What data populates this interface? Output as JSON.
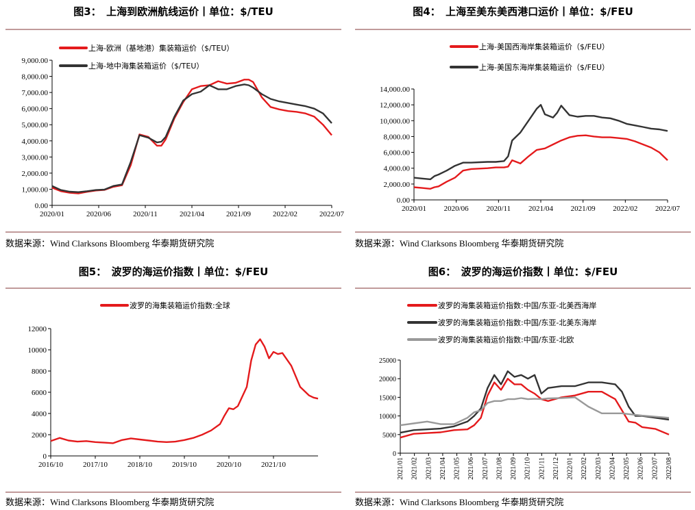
{
  "panels": [
    {
      "title": "图3：　上海到欧洲航线运价丨单位：$/TEU",
      "source": "数据来源：Wind Clarksons Bloomberg 华泰期货研究院"
    },
    {
      "title": "图4：　上海至美东美西港口运价丨单位：$/FEU",
      "source": "数据来源：Wind Clarksons Bloomberg 华泰期货研究院"
    },
    {
      "title": "图5：　波罗的海运价指数丨单位：$/FEU",
      "source": "数据来源：Wind Clarksons Bloomberg 华泰期货研究院"
    },
    {
      "title": "图6：　波罗的海运价指数丨单位：$/FEU",
      "source": "数据来源：Wind Clarksons Bloomberg 华泰期货研究院"
    }
  ],
  "chart_data": [
    {
      "type": "line",
      "x_tick_labels": [
        "2020/01",
        "2020/06",
        "2020/11",
        "2021/04",
        "2021/09",
        "2022/02",
        "2022/07"
      ],
      "ylim": [
        0,
        9000
      ],
      "y_ticks": [
        "0.00",
        "1,000.00",
        "2,000.00",
        "3,000.00",
        "4,000.00",
        "5,000.00",
        "6,000.00",
        "7,000.00",
        "8,000.00",
        "9,000.00"
      ],
      "legend_placement": "top-left",
      "series": [
        {
          "name": "上海-欧洲（基地港）集装箱运价（$/TEU）",
          "color": "#e41a1c",
          "x": [
            0,
            2,
            4,
            6,
            8,
            10,
            12,
            14,
            16,
            18,
            20,
            22,
            24,
            25,
            26,
            28,
            30,
            32,
            34,
            36,
            38,
            40,
            42,
            44,
            45,
            46,
            48,
            50,
            52,
            54,
            56,
            58,
            60,
            62,
            64
          ],
          "values": [
            1100,
            880,
            780,
            740,
            840,
            920,
            960,
            1150,
            1250,
            2500,
            4400,
            4250,
            3700,
            3700,
            4100,
            5400,
            6400,
            7200,
            7400,
            7450,
            7700,
            7550,
            7600,
            7800,
            7800,
            7650,
            6700,
            6100,
            5950,
            5850,
            5800,
            5700,
            5500,
            5000,
            4350
          ]
        },
        {
          "name": "上海-地中海集装箱运价（$/TEU）",
          "color": "#333333",
          "x": [
            0,
            2,
            4,
            6,
            8,
            10,
            12,
            14,
            16,
            18,
            20,
            22,
            24,
            25,
            26,
            28,
            30,
            32,
            34,
            36,
            38,
            40,
            42,
            44,
            45,
            46,
            48,
            50,
            52,
            54,
            56,
            58,
            60,
            62,
            64
          ],
          "values": [
            1200,
            950,
            850,
            820,
            880,
            950,
            980,
            1200,
            1300,
            2700,
            4350,
            4200,
            3900,
            3950,
            4250,
            5500,
            6500,
            6900,
            7050,
            7450,
            7200,
            7200,
            7400,
            7500,
            7450,
            7300,
            6900,
            6600,
            6450,
            6350,
            6250,
            6150,
            6000,
            5700,
            5100
          ]
        }
      ]
    },
    {
      "type": "line",
      "x_tick_labels": [
        "2020/01",
        "2020/06",
        "2020/11",
        "2021/04",
        "2021/09",
        "2022/02",
        "2022/07"
      ],
      "ylim": [
        0,
        14000
      ],
      "y_ticks": [
        "0.00",
        "2,000.00",
        "4,000.00",
        "6,000.00",
        "8,000.00",
        "10,000.00",
        "12,000.00",
        "14,000.00"
      ],
      "legend_placement": "top-center",
      "series": [
        {
          "name": "上海-美国西海岸集装箱运价（$/FEU）",
          "color": "#e41a1c",
          "x": [
            0,
            2,
            4,
            5,
            6,
            8,
            10,
            12,
            14,
            16,
            18,
            20,
            22,
            23,
            24,
            26,
            28,
            30,
            32,
            34,
            36,
            38,
            40,
            42,
            44,
            46,
            48,
            50,
            52,
            54,
            56,
            58,
            60,
            62
          ],
          "values": [
            1600,
            1500,
            1400,
            1600,
            1700,
            2300,
            2800,
            3700,
            3900,
            3950,
            4000,
            4100,
            4100,
            4200,
            5000,
            4600,
            5500,
            6300,
            6500,
            7000,
            7500,
            7900,
            8100,
            8150,
            8000,
            7900,
            7900,
            7800,
            7700,
            7400,
            7000,
            6600,
            6000,
            5000
          ]
        },
        {
          "name": "上海-美国东海岸集装箱运价（$/FEU）",
          "color": "#333333",
          "x": [
            0,
            2,
            4,
            5,
            6,
            8,
            10,
            12,
            14,
            16,
            18,
            20,
            22,
            23,
            24,
            26,
            28,
            30,
            31,
            32,
            34,
            35,
            36,
            38,
            40,
            42,
            44,
            46,
            48,
            50,
            52,
            54,
            56,
            58,
            60,
            62
          ],
          "values": [
            2800,
            2700,
            2600,
            3000,
            3200,
            3700,
            4300,
            4700,
            4700,
            4750,
            4800,
            4800,
            4900,
            5500,
            7500,
            8500,
            10000,
            11500,
            12000,
            10800,
            10400,
            11000,
            11900,
            10700,
            10500,
            10600,
            10600,
            10400,
            10300,
            10000,
            9600,
            9400,
            9200,
            9000,
            8900,
            8700
          ]
        }
      ]
    },
    {
      "type": "line",
      "x_tick_labels": [
        "2016/10",
        "2017/10",
        "2018/10",
        "2019/10",
        "2020/10",
        "2021/10"
      ],
      "ylim": [
        0,
        12000
      ],
      "y_ticks": [
        "0",
        "2000",
        "4000",
        "6000",
        "8000",
        "10000",
        "12000"
      ],
      "legend_placement": "top-center",
      "series": [
        {
          "name": "波罗的海集装箱运价指数:全球",
          "color": "#e41a1c",
          "x": [
            0,
            0.2,
            0.4,
            0.6,
            0.8,
            1,
            1.2,
            1.4,
            1.6,
            1.8,
            2,
            2.2,
            2.4,
            2.6,
            2.8,
            3,
            3.2,
            3.4,
            3.6,
            3.8,
            3.9,
            4,
            4.1,
            4.2,
            4.4,
            4.5,
            4.6,
            4.7,
            4.8,
            4.9,
            5,
            5.1,
            5.2,
            5.4,
            5.6,
            5.8,
            5.9,
            6
          ],
          "values": [
            1400,
            1700,
            1450,
            1350,
            1400,
            1300,
            1250,
            1200,
            1500,
            1650,
            1550,
            1450,
            1350,
            1300,
            1350,
            1500,
            1700,
            2000,
            2400,
            3000,
            3800,
            4500,
            4400,
            4700,
            6500,
            9000,
            10500,
            11000,
            10300,
            9200,
            9800,
            9600,
            9700,
            8500,
            6500,
            5700,
            5500,
            5400
          ]
        }
      ]
    },
    {
      "type": "line",
      "x_tick_labels": [
        "2021/01",
        "2021/02",
        "2021/03",
        "2021/04",
        "2021/05",
        "2021/06",
        "2021/07",
        "2021/08",
        "2021/09",
        "2021/10",
        "2021/11",
        "2021/12",
        "2022/01",
        "2022/02",
        "2022/03",
        "2022/04",
        "2022/05",
        "2022/06",
        "2022/07",
        "2022/08"
      ],
      "ylim": [
        0,
        25000
      ],
      "y_ticks": [
        "0",
        "5000",
        "10000",
        "15000",
        "20000",
        "25000"
      ],
      "legend_placement": "top-left",
      "series": [
        {
          "name": "波罗的海集装箱运价指数:中国/东亚-北美西海岸",
          "color": "#e41a1c",
          "x": [
            0,
            1,
            2,
            3,
            4,
            5,
            5.5,
            6,
            6.5,
            7,
            7.5,
            8,
            8.5,
            9,
            9.5,
            10,
            10.5,
            11,
            12,
            13,
            14,
            15,
            16,
            16.5,
            17,
            17.5,
            18,
            19,
            20
          ],
          "values": [
            4200,
            5200,
            5400,
            5600,
            6200,
            6400,
            7500,
            9500,
            15500,
            19000,
            17000,
            20000,
            18500,
            18500,
            17000,
            16000,
            14500,
            14000,
            15000,
            15500,
            16500,
            16500,
            14500,
            11500,
            8500,
            8200,
            7000,
            6500,
            5000
          ]
        },
        {
          "name": "波罗的海集装箱运价指数:中国/东亚-北美东海岸",
          "color": "#333333",
          "x": [
            0,
            1,
            2,
            3,
            4,
            5,
            5.5,
            6,
            6.5,
            7,
            7.5,
            8,
            8.5,
            9,
            9.5,
            10,
            10.5,
            11,
            12,
            13,
            14,
            15,
            16,
            16.5,
            17,
            17.5,
            18,
            19,
            20
          ],
          "values": [
            5500,
            6200,
            6400,
            6600,
            7200,
            8500,
            10000,
            12000,
            17500,
            21000,
            18500,
            22000,
            20500,
            21000,
            20000,
            21000,
            16000,
            17500,
            18000,
            18000,
            19000,
            19000,
            18500,
            16500,
            12500,
            10000,
            10000,
            9500,
            9000
          ]
        },
        {
          "name": "波罗的海集装箱运价指数:中国/东亚-北欧",
          "color": "#999999",
          "x": [
            0,
            1,
            2,
            3,
            4,
            5,
            5.5,
            6,
            6.5,
            7,
            7.5,
            8,
            8.5,
            9,
            9.5,
            10,
            10.5,
            11,
            12,
            13,
            14,
            15,
            16,
            16.5,
            17,
            17.5,
            18,
            19,
            20
          ],
          "values": [
            7500,
            8000,
            8500,
            7800,
            7800,
            9500,
            11000,
            11500,
            13500,
            14000,
            14000,
            14500,
            14500,
            14800,
            14500,
            14600,
            14500,
            14700,
            14800,
            15000,
            12500,
            10700,
            10700,
            10700,
            10500,
            10300,
            10100,
            9800,
            9500
          ]
        }
      ]
    }
  ]
}
